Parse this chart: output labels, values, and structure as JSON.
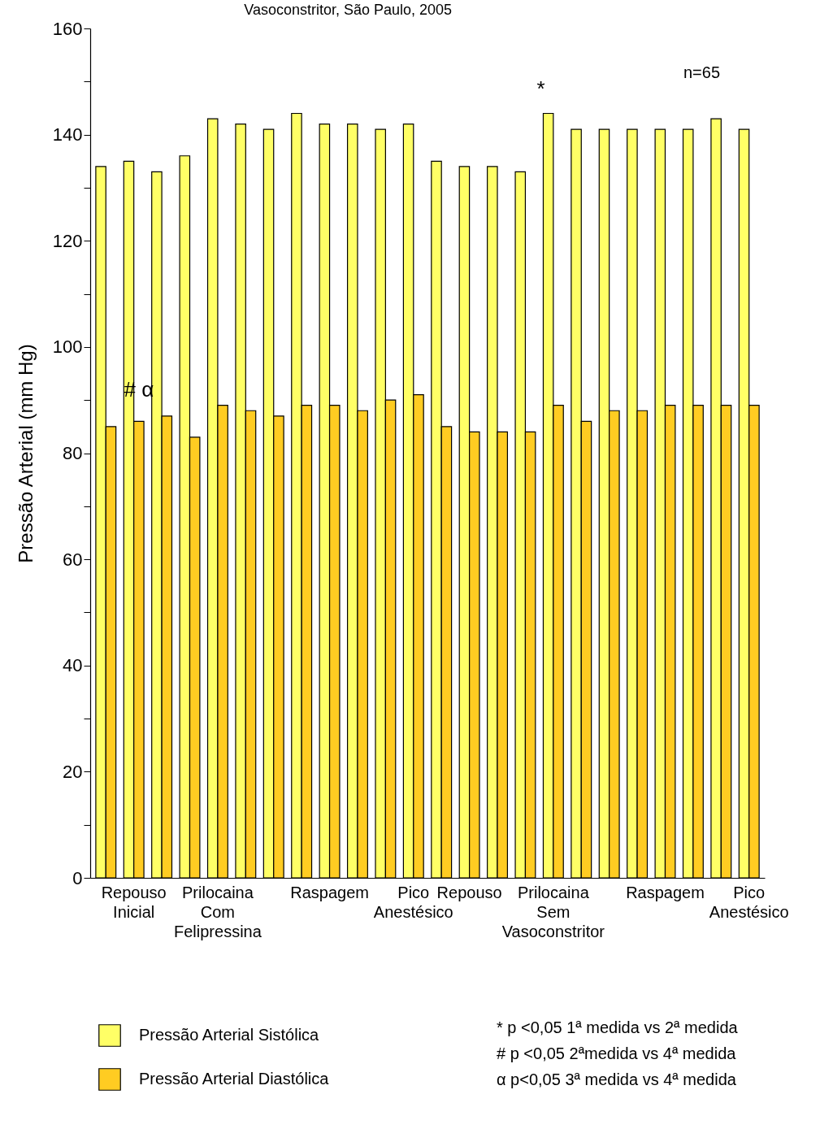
{
  "chart_data": {
    "type": "bar",
    "title": "Vasoconstritor, São Paulo, 2005",
    "ylabel": "Pressão Arterial (mm Hg)",
    "categories": [
      null,
      "Repouso Inicial",
      null,
      null,
      "Prilocaina Com Felipressina",
      null,
      null,
      null,
      "Raspagem",
      null,
      null,
      "Pico Anestésico",
      null,
      "Repouso",
      null,
      null,
      "Prilocaina Sem Vasoconstritor",
      null,
      null,
      null,
      "Raspagem",
      null,
      null,
      "Pico Anestésico"
    ],
    "series": [
      {
        "name": "Pressão Arterial Sistólica",
        "color": "#ffff66",
        "values": [
          134,
          135,
          133,
          136,
          143,
          142,
          141,
          144,
          142,
          142,
          141,
          142,
          135,
          134,
          134,
          133,
          144,
          141,
          141,
          141,
          141,
          141,
          143,
          141
        ]
      },
      {
        "name": "Pressão Arterial Diastólica",
        "color": "#ffcc22",
        "values": [
          85,
          86,
          87,
          83,
          89,
          88,
          87,
          89,
          89,
          88,
          90,
          91,
          85,
          84,
          84,
          84,
          89,
          86,
          88,
          88,
          89,
          89,
          89,
          89
        ]
      }
    ],
    "ylim": [
      0,
      160
    ],
    "yticks": [
      0,
      {
        "value": 10,
        "label": null
      },
      20,
      {
        "value": 30,
        "label": null
      },
      40,
      {
        "value": 50,
        "label": null
      },
      60,
      {
        "value": 70,
        "label": null
      },
      80,
      {
        "value": 90,
        "label": null
      },
      100,
      {
        "value": 110,
        "label": null
      },
      120,
      {
        "value": 130,
        "label": null
      },
      140,
      {
        "value": 150,
        "label": null
      },
      160
    ],
    "grid": false,
    "legend": "bottom left",
    "annotations": [
      "*",
      "# α",
      "n=65",
      "* p <0,05 1ª medida vs 2ª medida",
      "# p <0,05 2ªmedida vs 4ª medida",
      "α p<0,05 3ª medida vs 4ª medida"
    ]
  }
}
